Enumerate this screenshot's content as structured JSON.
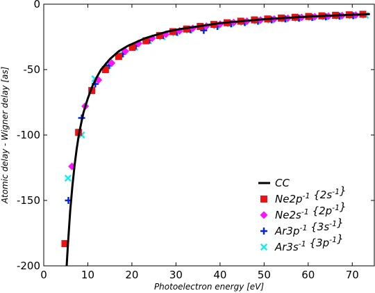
{
  "chart_data": {
    "type": "scatter",
    "title": "",
    "xlabel": "Photoelectron energy [eV]",
    "ylabel": "Atomic delay - Wigner delay [as]",
    "xlim": [
      0,
      75
    ],
    "ylim": [
      -200,
      0
    ],
    "xticks": [
      0,
      10,
      20,
      30,
      40,
      50,
      60,
      70
    ],
    "yticks": [
      0,
      -50,
      -100,
      -150,
      -200
    ],
    "grid": false,
    "legend_position": "lower-right",
    "series": [
      {
        "name": "CC",
        "kind": "line",
        "color": "#000000",
        "x": [
          5.2,
          5.5,
          6,
          6.5,
          7,
          7.5,
          8,
          9,
          10,
          11,
          12,
          13,
          14,
          15,
          17,
          19,
          21,
          23,
          25,
          28,
          31,
          35,
          40,
          45,
          50,
          55,
          60,
          65,
          70,
          74
        ],
        "y": [
          -200,
          -183,
          -158,
          -139,
          -123,
          -110,
          -99,
          -83,
          -72,
          -63,
          -56,
          -50,
          -46,
          -42,
          -36,
          -32,
          -29,
          -26,
          -24,
          -21,
          -19,
          -17,
          -14.5,
          -13,
          -11.5,
          -10.5,
          -9.5,
          -8.8,
          -8.1,
          -7.6
        ]
      },
      {
        "name": "Ne2p{2s}",
        "label_base": "Ne2p",
        "label_sup": "-1",
        "label_brace": "2s",
        "label_brace_sup": "-1",
        "marker": "square",
        "color": "#ee1111",
        "x": [
          4.8,
          7.9,
          10.9,
          14.0,
          17.0,
          20.1,
          23.2,
          26.3,
          29.3,
          32.4,
          35.5,
          38.6,
          41.6,
          44.7,
          47.8,
          50.8,
          53.9,
          57.0,
          60.1,
          63.1,
          66.2,
          69.3,
          72.4
        ],
        "y": [
          -183,
          -98,
          -66,
          -50,
          -40,
          -33,
          -28,
          -24,
          -21,
          -19,
          -17,
          -15.5,
          -14.2,
          -13,
          -12,
          -11.3,
          -10.6,
          -10,
          -9.4,
          -8.9,
          -8.5,
          -8.1,
          -7.7
        ]
      },
      {
        "name": "Ne2s{2p}",
        "label_base": "Ne2s",
        "label_sup": "-1",
        "label_brace": "2p",
        "label_brace_sup": "-1",
        "marker": "diamond",
        "color": "#ff11ff",
        "x": [
          6.4,
          9.4,
          12.4,
          15.4,
          18.5,
          21.5,
          24.6,
          27.7,
          30.8,
          33.8,
          36.9,
          40.0,
          43.1,
          46.1,
          49.2,
          52.3,
          55.4,
          58.5,
          61.5,
          64.6,
          67.7,
          70.8
        ],
        "y": [
          -124,
          -78,
          -58,
          -45,
          -36,
          -30,
          -26,
          -23,
          -20.5,
          -18.5,
          -16.8,
          -15.3,
          -14,
          -13,
          -12.1,
          -11.4,
          -10.7,
          -10.1,
          -9.6,
          -9.1,
          -8.7,
          -8.3
        ]
      },
      {
        "name": "Ar3p{3s}",
        "label_base": "Ar3p",
        "label_sup": "-1",
        "label_brace": "3s",
        "label_brace_sup": "-1",
        "marker": "plus",
        "color": "#0022ee",
        "x": [
          5.6,
          8.6,
          11.7,
          14.8,
          17.9,
          20.9,
          24.0,
          27.1,
          30.2,
          33.3,
          36.3,
          39.4,
          42.5,
          45.6,
          48.6,
          51.7,
          54.8,
          57.9,
          60.9,
          64.0,
          67.1,
          70.2
        ],
        "y": [
          -150,
          -87,
          -61,
          -47,
          -38,
          -32,
          -27.5,
          -24,
          -21.5,
          -19.5,
          -20,
          -17,
          -15,
          -14,
          -13,
          -12,
          -11.3,
          -10.7,
          -10.2,
          -9.7,
          -9.2,
          -8.8
        ]
      },
      {
        "name": "Ar3s{3p}",
        "label_base": "Ar3s",
        "label_sup": "-1",
        "label_brace": "3p",
        "label_brace_sup": "-1",
        "marker": "x",
        "color": "#11eeee",
        "x": [
          5.5,
          8.6,
          11.6,
          14.6,
          17.6,
          20.7,
          23.8,
          26.9,
          29.9,
          33.0,
          36.1,
          39.2,
          42.3,
          45.3,
          48.4,
          51.5,
          54.6,
          57.6,
          60.7,
          63.8,
          66.9,
          69.9,
          73.0
        ],
        "y": [
          -133,
          -100,
          -57,
          -47,
          -38,
          -33,
          -28,
          -25,
          -22,
          -20,
          -18,
          -16.5,
          -15,
          -14,
          -13,
          -12.2,
          -11.5,
          -10.9,
          -10.3,
          -9.8,
          -9.3,
          -8.9,
          -8.5
        ]
      }
    ]
  }
}
